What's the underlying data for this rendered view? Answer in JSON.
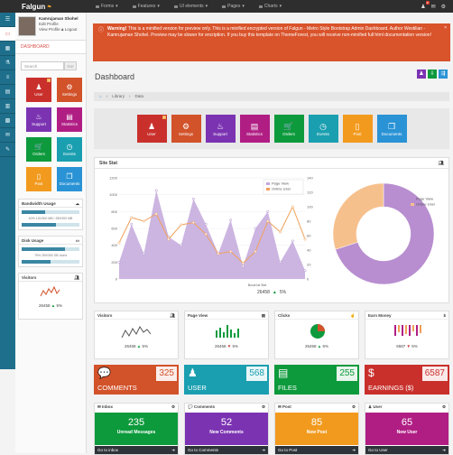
{
  "topbar": {
    "brand": "Falgun",
    "nav": [
      "Forms",
      "Features",
      "UI elements",
      "Pages",
      "Charts"
    ],
    "right_icons": [
      {
        "icon": "user-icon",
        "badge": "2"
      },
      {
        "icon": "envelope-icon",
        "badge": ""
      },
      {
        "icon": "gear-icon",
        "badge": ""
      }
    ]
  },
  "sidebar": {
    "profile": {
      "name": "Kamrujaman Shohel",
      "edit": "Edit Profile",
      "view": "View Profile",
      "logout": "Logout"
    },
    "dashboard_label": "DASHBOARD",
    "search_placeholder": "Search",
    "search_button": "Go!",
    "tiles": [
      {
        "label": "User",
        "icon": "♟",
        "color": "#c9302c",
        "badge": "3"
      },
      {
        "label": "Settings",
        "icon": "⚙",
        "color": "#d2522a",
        "badge": ""
      },
      {
        "label": "Support",
        "icon": "♨",
        "color": "#7b33b2",
        "badge": ""
      },
      {
        "label": "Statistics",
        "icon": "▤",
        "color": "#b01e84",
        "badge": ""
      },
      {
        "label": "Orders",
        "icon": "🛒",
        "color": "#0d9a3c",
        "badge": ""
      },
      {
        "label": "Events",
        "icon": "◷",
        "color": "#1a9fb0",
        "badge": ""
      },
      {
        "label": "Post",
        "icon": "▯",
        "color": "#f29a1e",
        "badge": ""
      },
      {
        "label": "Documents",
        "icon": "❐",
        "color": "#2a93d5",
        "badge": ""
      }
    ],
    "bandwidth": {
      "title": "Bandwidth Usage",
      "text": "40% 120/300 MB / 250/300 MB",
      "pct": 40
    },
    "disk": {
      "title": "Disk Usage",
      "text": "75% 250/300 GB Used",
      "pct": 75
    },
    "visitors": {
      "title": "Visitors",
      "value": "26458",
      "change": "5%"
    }
  },
  "alert": {
    "strong": "Warning!",
    "text": "This is a minified version for preview only. This is a minified encrypted version of Falgun - Metro Style Bootstrap Admin Dashboard. Author Westilian - Kamrujaman Shohel. Preview may be slower for encription. If you buy this template on ThemeForest, you will receive non-minified full html documentation version!"
  },
  "page": {
    "title": "Dashboard"
  },
  "title_buttons": [
    {
      "icon": "user-icon",
      "color": "#7b33b2"
    },
    {
      "icon": "download-icon",
      "color": "#0d9a3c"
    },
    {
      "icon": "share-icon",
      "color": "#2a93d5"
    }
  ],
  "breadcrumb": [
    "Library",
    "Data"
  ],
  "shortcuts": [
    {
      "label": "User",
      "icon": "♟",
      "color": "#c9302c",
      "badge": "3"
    },
    {
      "label": "Settings",
      "icon": "⚙",
      "color": "#d2522a",
      "badge": ""
    },
    {
      "label": "Support",
      "icon": "♨",
      "color": "#7b33b2",
      "badge": ""
    },
    {
      "label": "Statistics",
      "icon": "▤",
      "color": "#b01e84",
      "badge": ""
    },
    {
      "label": "Orders",
      "icon": "🛒",
      "color": "#0d9a3c",
      "badge": ""
    },
    {
      "label": "Events",
      "icon": "◷",
      "color": "#1a9fb0",
      "badge": ""
    },
    {
      "label": "Post",
      "icon": "▯",
      "color": "#f29a1e",
      "badge": ""
    },
    {
      "label": "Documents",
      "icon": "❐",
      "color": "#2a93d5",
      "badge": ""
    }
  ],
  "site_stat": {
    "title": "Site Stat",
    "value": "26458",
    "change": "5%"
  },
  "chart_data": [
    {
      "type": "line",
      "title": "",
      "xlabel": "Bocal lat Stat",
      "x": [
        1,
        2,
        3,
        4,
        5,
        6,
        7,
        8,
        9,
        10,
        11,
        12,
        13,
        14,
        15,
        16
      ],
      "ylim_left": [
        0,
        1200
      ],
      "ylim_right": [
        0,
        140
      ],
      "yticks_left": [
        0,
        200,
        400,
        600,
        800,
        1000,
        1200
      ],
      "yticks_right": [
        0,
        20,
        40,
        60,
        80,
        100,
        120,
        140
      ],
      "legend": "top-right",
      "series": [
        {
          "name": "Page View",
          "type": "area",
          "axis": "left",
          "color": "#c3a8dc",
          "values": [
            200,
            650,
            300,
            1050,
            500,
            400,
            950,
            650,
            300,
            700,
            150,
            600,
            800,
            200,
            450,
            100
          ]
        },
        {
          "name": "Online User",
          "type": "line",
          "axis": "right",
          "color": "#f0a05a",
          "values": [
            50,
            85,
            80,
            90,
            55,
            75,
            78,
            62,
            35,
            38,
            22,
            38,
            80,
            65,
            100,
            55
          ]
        }
      ]
    },
    {
      "type": "pie",
      "title": "",
      "legend": "top-right",
      "categories": [
        "Page View",
        "Online User"
      ],
      "values": [
        70,
        30
      ],
      "colors": [
        "#b88ed0",
        "#f6c08d"
      ]
    }
  ],
  "cards": [
    {
      "title": "Visitors",
      "value": "26458",
      "change": "5%",
      "icon": "users-icon",
      "up": true
    },
    {
      "title": "Page View",
      "value": "26458",
      "change": "5%",
      "icon": "file-icon",
      "up": false
    },
    {
      "title": "Clicks",
      "value": "26458",
      "change": "5%",
      "icon": "pointer-icon",
      "up": true
    },
    {
      "title": "Earn Money",
      "value": "6587",
      "change": "5%",
      "icon": "dollar-icon",
      "up": false
    }
  ],
  "big_tiles": [
    {
      "label": "COMMENTS",
      "number": "325",
      "color": "#d2522a",
      "icon": "💬"
    },
    {
      "label": "USER",
      "number": "568",
      "color": "#1a9fb0",
      "icon": "♟"
    },
    {
      "label": "FILES",
      "number": "255",
      "color": "#0d9a3c",
      "icon": "▤"
    },
    {
      "label": "EARNINGS ($)",
      "number": "6587",
      "color": "#c9302c",
      "icon": "$"
    }
  ],
  "messages": [
    {
      "title": "Inbox",
      "number": "235",
      "label": "Unread Messages",
      "footer": "Go to inbox",
      "color": "#0d9a3c"
    },
    {
      "title": "Comments",
      "number": "52",
      "label": "New Comments",
      "footer": "Go to Comments",
      "color": "#7b33b2"
    },
    {
      "title": "Post",
      "number": "85",
      "label": "New Post",
      "footer": "Go to Post",
      "color": "#f29a1e"
    },
    {
      "title": "User",
      "number": "65",
      "label": "New User",
      "footer": "Go to User",
      "color": "#b01e84"
    }
  ]
}
